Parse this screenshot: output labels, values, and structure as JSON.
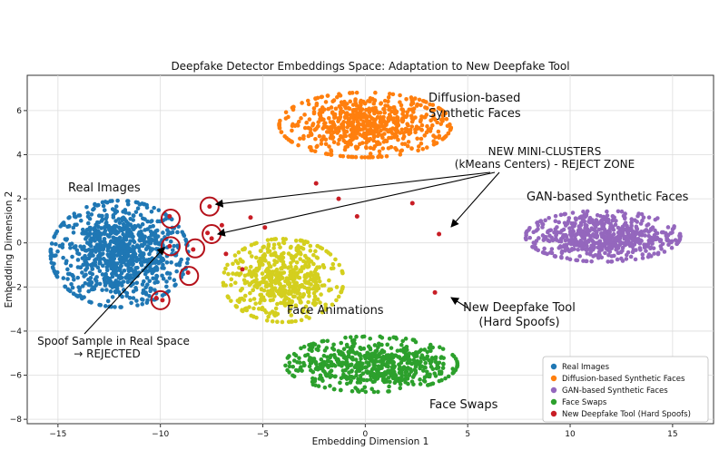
{
  "chart_data": {
    "type": "scatter",
    "title": "Deepfake Detector Embeddings Space: Adaptation to New Deepfake Tool",
    "xlabel": "Embedding Dimension 1",
    "ylabel": "Embedding Dimension 2",
    "xlim": [
      -16.5,
      17
    ],
    "ylim": [
      -8.2,
      7.6
    ],
    "xticks": [
      -15,
      -10,
      -5,
      0,
      5,
      10,
      15
    ],
    "yticks": [
      -8,
      -6,
      -4,
      -2,
      0,
      2,
      4,
      6
    ],
    "grid": true,
    "legend_position": "bottom-right",
    "series": [
      {
        "name": "Real Images",
        "color": "#1f77b4",
        "cluster": {
          "center": [
            -12.0,
            -0.5
          ],
          "spread": [
            1.6,
            1.15
          ],
          "count": 900
        }
      },
      {
        "name": "Diffusion-based Synthetic Faces",
        "color": "#ff7f0e",
        "cluster": {
          "center": [
            0.0,
            5.35
          ],
          "spread": [
            2.0,
            0.7
          ],
          "count": 650
        }
      },
      {
        "name": "GAN-based Synthetic Faces",
        "color": "#9467bd",
        "cluster": {
          "center": [
            11.6,
            0.3
          ],
          "spread": [
            1.8,
            0.55
          ],
          "count": 600
        }
      },
      {
        "name": "Face Swaps",
        "color": "#2ca02c",
        "cluster": {
          "center": [
            0.3,
            -5.5
          ],
          "spread": [
            2.0,
            0.6
          ],
          "count": 600
        }
      },
      {
        "name": "New Deepfake Tool (Hard Spoofs)",
        "color": "#c81d25",
        "points": [
          [
            -2.4,
            2.7
          ],
          [
            -1.3,
            2.0
          ],
          [
            -0.4,
            1.2
          ],
          [
            2.3,
            1.8
          ],
          [
            3.6,
            0.4
          ],
          [
            3.4,
            -2.25
          ],
          [
            -5.6,
            1.15
          ],
          [
            -4.9,
            0.7
          ],
          [
            -7.0,
            0.8
          ],
          [
            -6.8,
            -0.5
          ],
          [
            -6.0,
            -1.2
          ],
          [
            -7.6,
            1.65
          ],
          [
            -7.7,
            0.45
          ],
          [
            -7.5,
            0.2
          ],
          [
            -9.55,
            1.2
          ],
          [
            -9.55,
            -0.15
          ],
          [
            -8.4,
            -0.3
          ],
          [
            -8.65,
            -1.35
          ],
          [
            -10.2,
            -2.5
          ],
          [
            -9.9,
            -2.6
          ]
        ]
      }
    ],
    "reject_circles": [
      [
        -9.5,
        1.1
      ],
      [
        -7.6,
        1.65
      ],
      [
        -7.5,
        0.4
      ],
      [
        -9.5,
        -0.15
      ],
      [
        -8.3,
        -0.25
      ],
      [
        -8.6,
        -1.5
      ],
      [
        -10.0,
        -2.6
      ]
    ],
    "annotations": {
      "real_images": "Real Images",
      "diffusion_line1": "Diffusion-based",
      "diffusion_line2": "Synthetic Faces",
      "gan": "GAN-based Synthetic Faces",
      "face_animations": "Face Animations",
      "face_swaps": "Face Swaps",
      "mini_line1": "NEW MINI-CLUSTERS",
      "mini_line2": "(kMeans Centers) - REJECT ZONE",
      "new_tool_line1": "New Deepfake Tool",
      "new_tool_line2": "(Hard Spoofs)",
      "spoof_line1": "Spoof Sample in Real Space",
      "spoof_line2": "→ REJECTED"
    },
    "legend": [
      {
        "label": "Real Images",
        "color": "#1f77b4"
      },
      {
        "label": "Diffusion-based Synthetic Faces",
        "color": "#ff7f0e"
      },
      {
        "label": "GAN-based Synthetic Faces",
        "color": "#9467bd"
      },
      {
        "label": "Face Swaps",
        "color": "#2ca02c"
      },
      {
        "label": "New Deepfake Tool (Hard Spoofs)",
        "color": "#c81d25"
      }
    ],
    "face_animations_cluster": {
      "color": "#d4cf1e",
      "center": [
        -4.0,
        -1.7
      ],
      "spread": [
        1.4,
        0.9
      ],
      "count": 550
    }
  }
}
